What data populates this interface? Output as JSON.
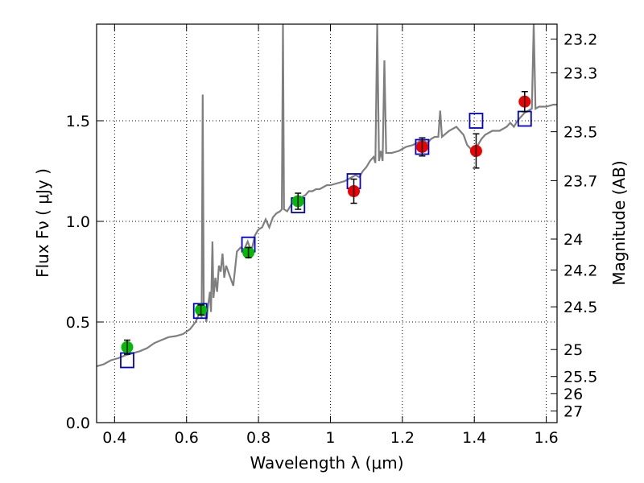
{
  "chart_data": {
    "type": "scatter",
    "title": "",
    "xlabel": "Wavelength  λ (μm)",
    "ylabel": "Flux  Fν  ( μJy )",
    "ylabel_right": "Magnitude (AB)",
    "xlim": [
      0.35,
      1.63
    ],
    "ylim": [
      0.0,
      1.98
    ],
    "grid": true,
    "x_ticks": [
      {
        "value": 0.4,
        "label": "0.4"
      },
      {
        "value": 0.6,
        "label": "0.6"
      },
      {
        "value": 0.8,
        "label": "0.8"
      },
      {
        "value": 1.0,
        "label": "1"
      },
      {
        "value": 1.2,
        "label": "1.2"
      },
      {
        "value": 1.4,
        "label": "1.4"
      },
      {
        "value": 1.6,
        "label": "1.6"
      }
    ],
    "y_ticks": [
      {
        "value": 0.0,
        "label": "0.0"
      },
      {
        "value": 0.5,
        "label": "0.5"
      },
      {
        "value": 1.0,
        "label": "1.0"
      },
      {
        "value": 1.5,
        "label": "1.5"
      }
    ],
    "y2_ticks": [
      {
        "mag": 23.2,
        "label": "23.2"
      },
      {
        "mag": 23.3,
        "label": "23.3"
      },
      {
        "mag": 23.5,
        "label": "23.5"
      },
      {
        "mag": 23.7,
        "label": "23.7"
      },
      {
        "mag": 24,
        "label": "24"
      },
      {
        "mag": 24.2,
        "label": "24.2"
      },
      {
        "mag": 24.5,
        "label": "24.5"
      },
      {
        "mag": 25,
        "label": "25"
      },
      {
        "mag": 25.5,
        "label": "25.5"
      },
      {
        "mag": 26,
        "label": "26"
      },
      {
        "mag": 27,
        "label": "27"
      }
    ],
    "model_spectrum": {
      "color": "#7f7f7f",
      "points": [
        [
          0.35,
          0.28
        ],
        [
          0.37,
          0.29
        ],
        [
          0.39,
          0.31
        ],
        [
          0.41,
          0.32
        ],
        [
          0.43,
          0.335
        ],
        [
          0.45,
          0.345
        ],
        [
          0.47,
          0.355
        ],
        [
          0.49,
          0.37
        ],
        [
          0.51,
          0.395
        ],
        [
          0.53,
          0.41
        ],
        [
          0.55,
          0.425
        ],
        [
          0.57,
          0.43
        ],
        [
          0.59,
          0.44
        ],
        [
          0.61,
          0.465
        ],
        [
          0.625,
          0.5
        ],
        [
          0.635,
          0.54
        ],
        [
          0.64,
          0.55
        ],
        [
          0.642,
          0.52
        ],
        [
          0.645,
          1.63
        ],
        [
          0.648,
          0.53
        ],
        [
          0.652,
          0.55
        ],
        [
          0.655,
          0.5
        ],
        [
          0.66,
          0.58
        ],
        [
          0.665,
          0.65
        ],
        [
          0.668,
          0.55
        ],
        [
          0.672,
          0.9
        ],
        [
          0.675,
          0.62
        ],
        [
          0.68,
          0.72
        ],
        [
          0.685,
          0.65
        ],
        [
          0.69,
          0.78
        ],
        [
          0.695,
          0.75
        ],
        [
          0.7,
          0.84
        ],
        [
          0.705,
          0.72
        ],
        [
          0.71,
          0.78
        ],
        [
          0.72,
          0.73
        ],
        [
          0.73,
          0.68
        ],
        [
          0.74,
          0.85
        ],
        [
          0.75,
          0.87
        ],
        [
          0.76,
          0.86
        ],
        [
          0.77,
          0.9
        ],
        [
          0.78,
          0.85
        ],
        [
          0.79,
          0.93
        ],
        [
          0.8,
          0.96
        ],
        [
          0.81,
          0.97
        ],
        [
          0.82,
          1.01
        ],
        [
          0.83,
          0.97
        ],
        [
          0.84,
          1.02
        ],
        [
          0.85,
          1.04
        ],
        [
          0.86,
          1.05
        ],
        [
          0.865,
          1.06
        ],
        [
          0.868,
          1.98
        ],
        [
          0.871,
          1.06
        ],
        [
          0.88,
          1.05
        ],
        [
          0.89,
          1.08
        ],
        [
          0.9,
          1.1
        ],
        [
          0.91,
          1.11
        ],
        [
          0.92,
          1.12
        ],
        [
          0.93,
          1.13
        ],
        [
          0.94,
          1.15
        ],
        [
          0.95,
          1.15
        ],
        [
          0.96,
          1.16
        ],
        [
          0.97,
          1.16
        ],
        [
          0.98,
          1.17
        ],
        [
          0.99,
          1.18
        ],
        [
          1.0,
          1.18
        ],
        [
          1.02,
          1.19
        ],
        [
          1.04,
          1.2
        ],
        [
          1.06,
          1.22
        ],
        [
          1.07,
          1.23
        ],
        [
          1.08,
          1.22
        ],
        [
          1.09,
          1.25
        ],
        [
          1.1,
          1.27
        ],
        [
          1.11,
          1.3
        ],
        [
          1.12,
          1.32
        ],
        [
          1.125,
          1.29
        ],
        [
          1.13,
          1.98
        ],
        [
          1.135,
          1.3
        ],
        [
          1.14,
          1.35
        ],
        [
          1.145,
          1.3
        ],
        [
          1.15,
          1.8
        ],
        [
          1.155,
          1.34
        ],
        [
          1.17,
          1.34
        ],
        [
          1.19,
          1.35
        ],
        [
          1.21,
          1.37
        ],
        [
          1.23,
          1.38
        ],
        [
          1.25,
          1.4
        ],
        [
          1.26,
          1.4
        ],
        [
          1.27,
          1.39
        ],
        [
          1.28,
          1.41
        ],
        [
          1.29,
          1.42
        ],
        [
          1.3,
          1.42
        ],
        [
          1.305,
          1.55
        ],
        [
          1.31,
          1.42
        ],
        [
          1.33,
          1.45
        ],
        [
          1.35,
          1.47
        ],
        [
          1.36,
          1.45
        ],
        [
          1.37,
          1.43
        ],
        [
          1.38,
          1.38
        ],
        [
          1.39,
          1.36
        ],
        [
          1.4,
          1.34
        ],
        [
          1.41,
          1.38
        ],
        [
          1.42,
          1.41
        ],
        [
          1.43,
          1.43
        ],
        [
          1.45,
          1.45
        ],
        [
          1.47,
          1.45
        ],
        [
          1.49,
          1.47
        ],
        [
          1.5,
          1.49
        ],
        [
          1.51,
          1.47
        ],
        [
          1.52,
          1.5
        ],
        [
          1.53,
          1.52
        ],
        [
          1.54,
          1.54
        ],
        [
          1.55,
          1.55
        ],
        [
          1.56,
          1.56
        ],
        [
          1.565,
          1.98
        ],
        [
          1.57,
          1.56
        ],
        [
          1.58,
          1.57
        ],
        [
          1.6,
          1.57
        ],
        [
          1.62,
          1.58
        ],
        [
          1.63,
          1.58
        ]
      ]
    },
    "model_photometry": {
      "color": "#0000cc",
      "points": [
        [
          0.435,
          0.31
        ],
        [
          0.638,
          0.555
        ],
        [
          0.772,
          0.885
        ],
        [
          0.91,
          1.08
        ],
        [
          1.065,
          1.2
        ],
        [
          1.255,
          1.37
        ],
        [
          1.405,
          1.5
        ],
        [
          1.54,
          1.51
        ]
      ]
    },
    "observed_optical": {
      "color": "#00bb00",
      "points": [
        {
          "x": 0.435,
          "y": 0.375,
          "err": 0.035
        },
        {
          "x": 0.64,
          "y": 0.56,
          "err": 0.025
        },
        {
          "x": 0.772,
          "y": 0.845,
          "err": 0.025
        },
        {
          "x": 0.91,
          "y": 1.1,
          "err": 0.04
        }
      ]
    },
    "observed_nir": {
      "color": "#ee0000",
      "points": [
        {
          "x": 1.065,
          "y": 1.15,
          "err": 0.06
        },
        {
          "x": 1.255,
          "y": 1.37,
          "err": 0.045
        },
        {
          "x": 1.405,
          "y": 1.35,
          "err": 0.085
        },
        {
          "x": 1.54,
          "y": 1.595,
          "err": 0.05
        }
      ]
    }
  }
}
